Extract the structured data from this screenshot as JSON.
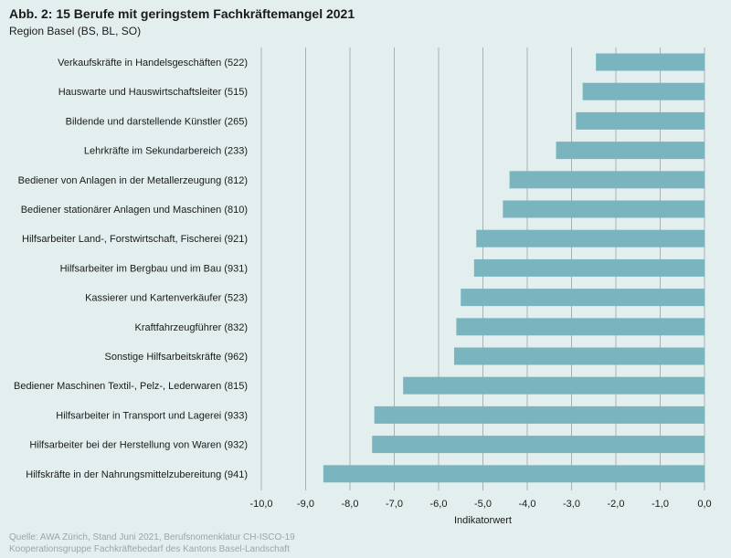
{
  "header": {
    "title": "Abb. 2: 15 Berufe mit geringstem Fachkräftemangel 2021",
    "subtitle": "Region Basel (BS, BL, SO)"
  },
  "colors": {
    "bar": "#7ab5bf",
    "grid": "#a8b0b0",
    "background": "#e3efef"
  },
  "chart_data": {
    "type": "bar",
    "orientation": "horizontal",
    "title": "Abb. 2: 15 Berufe mit geringstem Fachkräftemangel 2021",
    "subtitle": "Region Basel (BS, BL, SO)",
    "xlabel": "Indikatorwert",
    "ylabel": "",
    "xlim": [
      -10.0,
      0.0
    ],
    "grid": true,
    "ticks": [
      "-10,0",
      "-9,0",
      "-8,0",
      "-7,0",
      "-6,0",
      "-5,0",
      "-4,0",
      "-3,0",
      "-2,0",
      "-1,0",
      "0,0"
    ],
    "tick_values": [
      -10,
      -9,
      -8,
      -7,
      -6,
      -5,
      -4,
      -3,
      -2,
      -1,
      0
    ],
    "categories": [
      "Verkaufskräfte in Handelsgeschäften (522)",
      "Hauswarte und Hauswirtschaftsleiter (515)",
      "Bildende und darstellende Künstler (265)",
      "Lehrkräfte im Sekundarbereich (233)",
      "Bediener von Anlagen in der Metallerzeugung (812)",
      "Bediener stationärer Anlagen und Maschinen (810)",
      "Hilfsarbeiter Land-, Forstwirtschaft, Fischerei (921)",
      "Hilfsarbeiter im Bergbau und im Bau (931)",
      "Kassierer und Kartenverkäufer (523)",
      "Kraftfahrzeugführer (832)",
      "Sonstige Hilfsarbeitskräfte (962)",
      "Bediener Maschinen Textil-, Pelz-, Lederwaren (815)",
      "Hilfsarbeiter in Transport und Lagerei (933)",
      "Hilfsarbeiter bei der Herstellung von Waren (932)",
      "Hilfskräfte in der Nahrungsmittelzubereitung (941)"
    ],
    "values": [
      -2.45,
      -2.75,
      -2.9,
      -3.35,
      -4.4,
      -4.55,
      -5.15,
      -5.2,
      -5.5,
      -5.6,
      -5.65,
      -6.8,
      -7.45,
      -7.5,
      -8.6
    ]
  },
  "source": {
    "line1": "Quelle: AWA Zürich, Stand Juni 2021, Berufsnomenklatur CH-ISCO-19",
    "line2": "Kooperationsgruppe Fachkräftebedarf des Kantons Basel-Landschaft"
  }
}
